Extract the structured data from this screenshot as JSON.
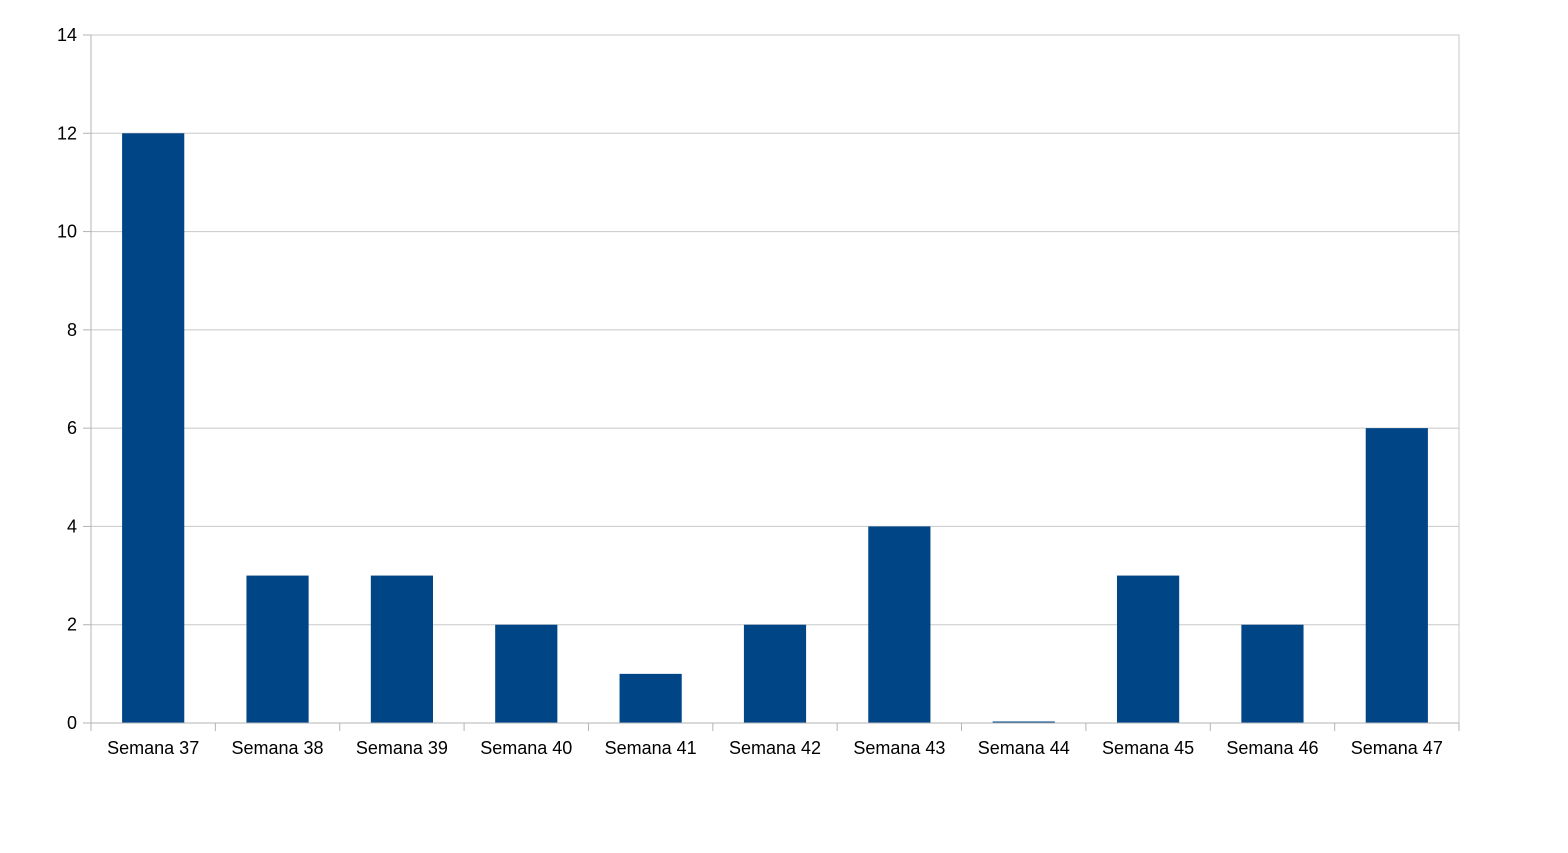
{
  "chart_data": {
    "type": "bar",
    "title": "",
    "xlabel": "",
    "ylabel": "",
    "categories": [
      "Semana 37",
      "Semana 38",
      "Semana 39",
      "Semana 40",
      "Semana 41",
      "Semana 42",
      "Semana 43",
      "Semana 44",
      "Semana 45",
      "Semana 46",
      "Semana 47"
    ],
    "values": [
      12,
      3,
      3,
      2,
      1,
      2,
      4,
      0,
      3,
      2,
      6
    ],
    "ylim": [
      0,
      14
    ],
    "yticks": [
      0,
      2,
      4,
      6,
      8,
      10,
      12,
      14
    ],
    "grid": true,
    "legend": "none",
    "colors": {
      "bar": "#004586"
    }
  }
}
